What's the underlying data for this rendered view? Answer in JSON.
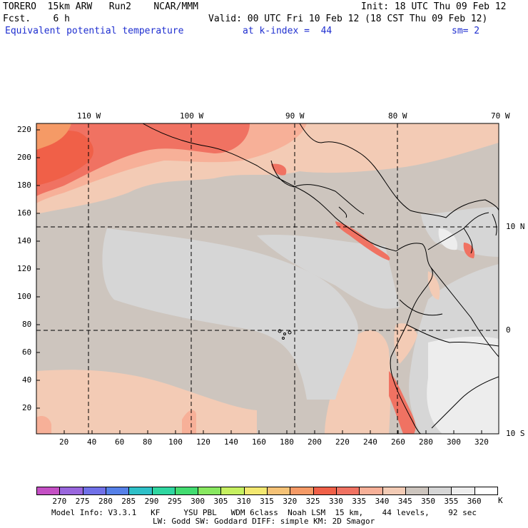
{
  "header": {
    "model": "TORERO  15km ARW   Run2    NCAR/MMM",
    "init": "Init: 18 UTC Thu 09 Feb 12",
    "fcst": "Fcst.    6 h",
    "valid": "Valid: 00 UTC Fri 10 Feb 12 (18 CST Thu 09 Feb 12)",
    "field": "Equivalent potential temperature",
    "level": "at k-index =  44",
    "smoothing": "sm= 2"
  },
  "map": {
    "lon_labels": [
      "110 W",
      "100 W",
      "90 W",
      "80 W",
      "70 W"
    ],
    "lat_labels": [
      "10 N",
      "0",
      "10 S"
    ],
    "y_ticks": [
      "220",
      "200",
      "180",
      "160",
      "140",
      "120",
      "100",
      "80",
      "60",
      "40",
      "20"
    ],
    "x_ticks": [
      "20",
      "40",
      "60",
      "80",
      "100",
      "120",
      "140",
      "160",
      "180",
      "200",
      "220",
      "240",
      "260",
      "280",
      "300",
      "320"
    ]
  },
  "colorbar": {
    "labels": [
      "270",
      "275",
      "280",
      "285",
      "290",
      "295",
      "300",
      "305",
      "310",
      "315",
      "320",
      "325",
      "330",
      "335",
      "340",
      "345",
      "350",
      "355",
      "360"
    ],
    "unit": "K",
    "colors": [
      "#c44fc4",
      "#9966dd",
      "#7070e8",
      "#5580e8",
      "#2ec0c8",
      "#2fd6a0",
      "#42dc70",
      "#88e860",
      "#c6f060",
      "#f3e870",
      "#f5c276",
      "#f59a66",
      "#f06048",
      "#f07262",
      "#f7b098",
      "#f3cbb5",
      "#cdc5be",
      "#d6d6d6",
      "#ededed",
      "#ffffff"
    ]
  },
  "footer": {
    "line1": "Model Info: V3.3.1   KF     YSU PBL   WDM 6class  Noah LSM  15 km,    44 levels,    92 sec",
    "line2": "LW: Godd SW: Goddard DIFF: simple KM: 2D Smagor"
  }
}
